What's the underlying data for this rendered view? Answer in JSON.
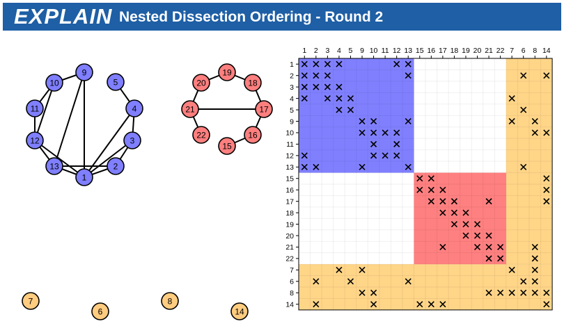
{
  "header": {
    "logo": "EXPLAIN",
    "title": "Nested Dissection Ordering - Round 2"
  },
  "colors": {
    "header_bg": "#1e5fa5",
    "blue_node": "#7f7fff",
    "red_node": "#ff7f7f",
    "orange_node": "#ffcc80",
    "blue_block": "#8080ff",
    "red_block": "#ff8080",
    "orange_block": "#ffd588"
  },
  "graph": {
    "nodes": [
      {
        "id": "1",
        "group": "blue"
      },
      {
        "id": "2",
        "group": "blue"
      },
      {
        "id": "3",
        "group": "blue"
      },
      {
        "id": "4",
        "group": "blue"
      },
      {
        "id": "5",
        "group": "blue"
      },
      {
        "id": "9",
        "group": "blue"
      },
      {
        "id": "10",
        "group": "blue"
      },
      {
        "id": "11",
        "group": "blue"
      },
      {
        "id": "12",
        "group": "blue"
      },
      {
        "id": "13",
        "group": "blue"
      },
      {
        "id": "15",
        "group": "red"
      },
      {
        "id": "16",
        "group": "red"
      },
      {
        "id": "17",
        "group": "red"
      },
      {
        "id": "18",
        "group": "red"
      },
      {
        "id": "19",
        "group": "red"
      },
      {
        "id": "20",
        "group": "red"
      },
      {
        "id": "21",
        "group": "red"
      },
      {
        "id": "22",
        "group": "red"
      },
      {
        "id": "7",
        "group": "orange"
      },
      {
        "id": "6",
        "group": "orange"
      },
      {
        "id": "8",
        "group": "orange"
      },
      {
        "id": "14",
        "group": "orange"
      }
    ],
    "edges": [
      [
        "1",
        "2"
      ],
      [
        "1",
        "3"
      ],
      [
        "1",
        "13"
      ],
      [
        "1",
        "12"
      ],
      [
        "1",
        "9"
      ],
      [
        "1",
        "4"
      ],
      [
        "2",
        "3"
      ],
      [
        "2",
        "13"
      ],
      [
        "3",
        "4"
      ],
      [
        "4",
        "5"
      ],
      [
        "9",
        "10"
      ],
      [
        "9",
        "13"
      ],
      [
        "10",
        "11"
      ],
      [
        "10",
        "12"
      ],
      [
        "11",
        "12"
      ],
      [
        "12",
        "13"
      ],
      [
        "13",
        "1"
      ],
      [
        "20",
        "19"
      ],
      [
        "19",
        "18"
      ],
      [
        "18",
        "17"
      ],
      [
        "17",
        "16"
      ],
      [
        "16",
        "15"
      ],
      [
        "21",
        "20"
      ],
      [
        "21",
        "22"
      ],
      [
        "21",
        "17"
      ]
    ]
  },
  "matrix": {
    "order": [
      "1",
      "2",
      "3",
      "4",
      "5",
      "9",
      "10",
      "11",
      "12",
      "13",
      "15",
      "16",
      "17",
      "18",
      "19",
      "20",
      "21",
      "22",
      "7",
      "6",
      "8",
      "14"
    ],
    "blocks": [
      {
        "from": 0,
        "to": 9,
        "group": "blue"
      },
      {
        "from": 10,
        "to": 17,
        "group": "red"
      }
    ],
    "separator_from": 18,
    "marks": [
      [
        0,
        0
      ],
      [
        0,
        1
      ],
      [
        0,
        2
      ],
      [
        0,
        3
      ],
      [
        0,
        8
      ],
      [
        0,
        9
      ],
      [
        1,
        0
      ],
      [
        1,
        1
      ],
      [
        1,
        2
      ],
      [
        1,
        9
      ],
      [
        1,
        19
      ],
      [
        1,
        21
      ],
      [
        2,
        0
      ],
      [
        2,
        1
      ],
      [
        2,
        2
      ],
      [
        2,
        3
      ],
      [
        3,
        0
      ],
      [
        3,
        2
      ],
      [
        3,
        3
      ],
      [
        3,
        4
      ],
      [
        3,
        18
      ],
      [
        4,
        3
      ],
      [
        4,
        4
      ],
      [
        4,
        19
      ],
      [
        5,
        5
      ],
      [
        5,
        6
      ],
      [
        5,
        9
      ],
      [
        5,
        18
      ],
      [
        5,
        20
      ],
      [
        6,
        5
      ],
      [
        6,
        6
      ],
      [
        6,
        7
      ],
      [
        6,
        8
      ],
      [
        6,
        20
      ],
      [
        6,
        21
      ],
      [
        7,
        6
      ],
      [
        7,
        8
      ],
      [
        8,
        0
      ],
      [
        8,
        6
      ],
      [
        8,
        7
      ],
      [
        8,
        8
      ],
      [
        9,
        0
      ],
      [
        9,
        1
      ],
      [
        9,
        5
      ],
      [
        9,
        9
      ],
      [
        9,
        19
      ],
      [
        10,
        10
      ],
      [
        10,
        11
      ],
      [
        10,
        21
      ],
      [
        11,
        10
      ],
      [
        11,
        11
      ],
      [
        11,
        12
      ],
      [
        11,
        21
      ],
      [
        12,
        11
      ],
      [
        12,
        12
      ],
      [
        12,
        13
      ],
      [
        12,
        16
      ],
      [
        12,
        21
      ],
      [
        13,
        12
      ],
      [
        13,
        13
      ],
      [
        13,
        14
      ],
      [
        14,
        13
      ],
      [
        14,
        14
      ],
      [
        14,
        15
      ],
      [
        15,
        14
      ],
      [
        15,
        15
      ],
      [
        15,
        16
      ],
      [
        16,
        12
      ],
      [
        16,
        15
      ],
      [
        16,
        16
      ],
      [
        16,
        17
      ],
      [
        16,
        20
      ],
      [
        17,
        16
      ],
      [
        17,
        17
      ],
      [
        17,
        20
      ],
      [
        18,
        3
      ],
      [
        18,
        5
      ],
      [
        18,
        18
      ],
      [
        18,
        20
      ],
      [
        19,
        1
      ],
      [
        19,
        4
      ],
      [
        19,
        9
      ],
      [
        19,
        19
      ],
      [
        19,
        20
      ],
      [
        20,
        5
      ],
      [
        20,
        6
      ],
      [
        20,
        16
      ],
      [
        20,
        17
      ],
      [
        20,
        18
      ],
      [
        20,
        19
      ],
      [
        20,
        20
      ],
      [
        20,
        21
      ],
      [
        21,
        1
      ],
      [
        21,
        6
      ],
      [
        21,
        10
      ],
      [
        21,
        11
      ],
      [
        21,
        12
      ],
      [
        21,
        21
      ]
    ]
  }
}
